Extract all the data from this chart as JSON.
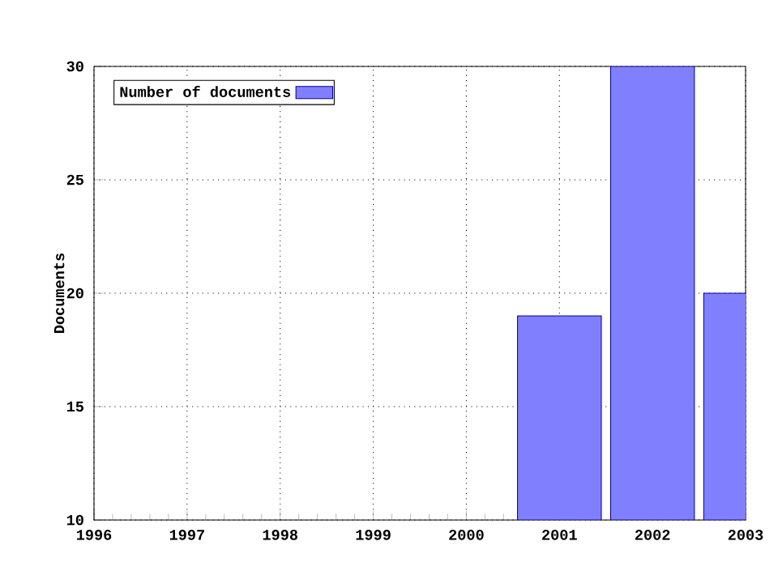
{
  "chart_data": {
    "type": "bar",
    "ylabel": "Documents",
    "x": [
      2001,
      2002,
      2003
    ],
    "series": [
      {
        "name": "Number of documents",
        "color": "#8080ff",
        "values": [
          19,
          30,
          20
        ]
      }
    ],
    "xlim": [
      1996,
      2003
    ],
    "xticks": [
      1996,
      1997,
      1998,
      1999,
      2000,
      2001,
      2002,
      2003
    ],
    "ylim": [
      10,
      30
    ],
    "yticks": [
      10,
      15,
      20,
      25,
      30
    ],
    "grid": true,
    "legend": "top left"
  }
}
